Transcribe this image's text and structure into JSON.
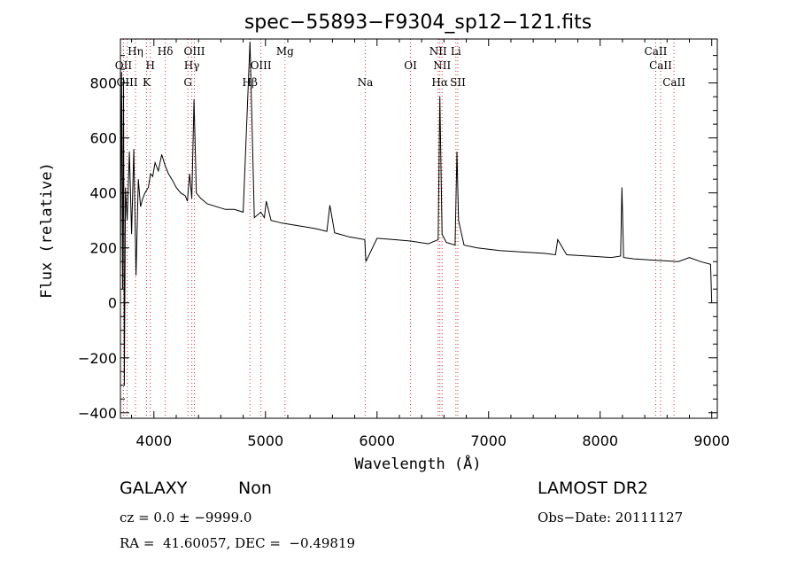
{
  "chart_data": {
    "type": "line",
    "title": "spec−55893−F9304_sp12−121.fits",
    "xlabel": "Wavelength (Å)",
    "ylabel": "Flux (relative)",
    "xlim": [
      3700,
      9050
    ],
    "ylim": [
      -420,
      960
    ],
    "x_ticks": [
      4000,
      5000,
      6000,
      7000,
      8000,
      9000
    ],
    "y_ticks": [
      -400,
      -200,
      0,
      200,
      400,
      600,
      800
    ],
    "grid": false,
    "series": [
      {
        "x": [
          3700,
          3710,
          3720,
          3728,
          3735,
          3745,
          3760,
          3780,
          3800,
          3820,
          3840,
          3860,
          3880,
          3900,
          3920,
          3950,
          3970,
          3990,
          4010,
          4040,
          4070,
          4100,
          4130,
          4160,
          4200,
          4240,
          4280,
          4300,
          4320,
          4340,
          4360,
          4380,
          4420,
          4480,
          4560,
          4640,
          4720,
          4800,
          4861,
          4900,
          4958,
          4990,
          5007,
          5050,
          5150,
          5300,
          5450,
          5550,
          5577,
          5620,
          5750,
          5890,
          5900,
          6000,
          6150,
          6300,
          6460,
          6548,
          6563,
          6583,
          6620,
          6700,
          6716,
          6731,
          6780,
          6900,
          7100,
          7300,
          7500,
          7600,
          7620,
          7700,
          7900,
          8100,
          8183,
          8195,
          8210,
          8300,
          8500,
          8700,
          8800,
          8900,
          8990,
          9000
        ],
        "y": [
          120,
          840,
          50,
          820,
          -300,
          420,
          300,
          550,
          250,
          560,
          100,
          450,
          350,
          380,
          400,
          420,
          470,
          460,
          510,
          480,
          540,
          500,
          470,
          450,
          420,
          400,
          390,
          370,
          470,
          380,
          740,
          400,
          380,
          360,
          350,
          340,
          340,
          330,
          950,
          310,
          330,
          310,
          370,
          300,
          290,
          280,
          270,
          260,
          355,
          255,
          240,
          230,
          150,
          235,
          230,
          225,
          215,
          230,
          750,
          250,
          220,
          210,
          550,
          300,
          210,
          200,
          190,
          185,
          180,
          175,
          230,
          175,
          170,
          165,
          170,
          420,
          165,
          160,
          155,
          150,
          165,
          150,
          140,
          0
        ]
      }
    ],
    "line_markers": [
      {
        "name": "OII",
        "wl": 3727,
        "row": 1
      },
      {
        "name": "OIII",
        "wl": 3760,
        "row": 2
      },
      {
        "name": "Hη",
        "wl": 3835,
        "row": 0
      },
      {
        "name": "H",
        "wl": 3968,
        "row": 1
      },
      {
        "name": "K",
        "wl": 3934,
        "row": 2
      },
      {
        "name": "Hδ",
        "wl": 4102,
        "row": 0
      },
      {
        "name": "OIII",
        "wl": 4363,
        "row": 0
      },
      {
        "name": "Hγ",
        "wl": 4340,
        "row": 1
      },
      {
        "name": "G",
        "wl": 4305,
        "row": 2
      },
      {
        "name": "Hβ",
        "wl": 4861,
        "row": 2
      },
      {
        "name": "OIII",
        "wl": 4959,
        "row": 1
      },
      {
        "name": "Mg",
        "wl": 5175,
        "row": 0
      },
      {
        "name": "Na",
        "wl": 5894,
        "row": 2
      },
      {
        "name": "OI",
        "wl": 6300,
        "row": 1
      },
      {
        "name": "NII",
        "wl": 6548,
        "row": 0
      },
      {
        "name": "NII",
        "wl": 6583,
        "row": 1
      },
      {
        "name": "Hα",
        "wl": 6563,
        "row": 2
      },
      {
        "name": "Li",
        "wl": 6707,
        "row": 0
      },
      {
        "name": "SII",
        "wl": 6724,
        "row": 2
      },
      {
        "name": "CaII",
        "wl": 8498,
        "row": 0
      },
      {
        "name": "CaII",
        "wl": 8542,
        "row": 1
      },
      {
        "name": "CaII",
        "wl": 8662,
        "row": 2
      }
    ]
  },
  "info": {
    "class": "GALAXY",
    "subclass": "Non",
    "cz": "cz = 0.0 ± −9999.0",
    "radec": "RA =  41.60057, DEC =  −0.49819",
    "survey": "LAMOST DR2",
    "obsdate": "Obs−Date: 20111127"
  },
  "colors": {
    "spectrum": "#000000",
    "line_marker": "#cc3333",
    "axes": "#000000"
  }
}
